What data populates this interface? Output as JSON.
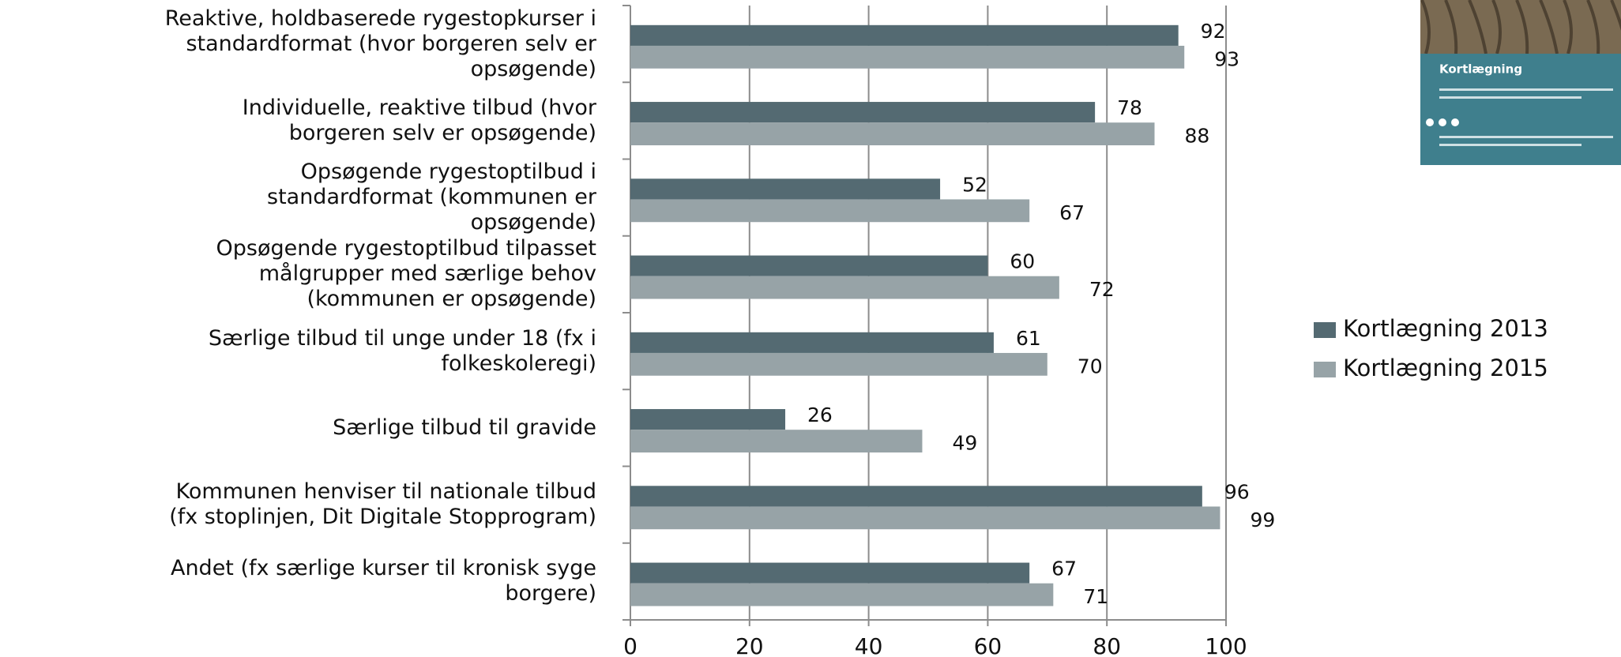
{
  "chart_data": {
    "type": "bar",
    "orientation": "horizontal",
    "categories": [
      "Reaktive, holdbaserede rygestopkurser i\nstandardformat (hvor borgeren selv er\nopsøgende)",
      "Individuelle, reaktive tilbud (hvor\nborgeren selv er opsøgende)",
      "Opsøgende rygestoptilbud i\nstandardformat (kommunen er\nopsøgende)",
      "Opsøgende rygestoptilbud tilpasset\nmålgrupper med særlige behov\n(kommunen er opsøgende)",
      "Særlige tilbud til unge under 18 (fx i\nfolkeskoleregi)",
      "Særlige tilbud til gravide",
      "Kommunen henviser til nationale tilbud\n(fx stoplinjen, Dit Digitale Stopprogram)",
      "Andet (fx særlige kurser til kronisk syge\nborgere)"
    ],
    "series": [
      {
        "name": "Kortlægning 2013",
        "color": "#546a72",
        "values": [
          92,
          78,
          52,
          60,
          61,
          26,
          96,
          67
        ]
      },
      {
        "name": "Kortlægning 2015",
        "color": "#97a3a7",
        "values": [
          93,
          88,
          67,
          72,
          70,
          49,
          99,
          71
        ]
      }
    ],
    "xlim": [
      0,
      100
    ],
    "xticks": [
      0,
      20,
      40,
      60,
      80,
      100
    ],
    "grid": true,
    "legend": "right"
  },
  "thumbnail": {
    "title": "Kortlægning"
  }
}
